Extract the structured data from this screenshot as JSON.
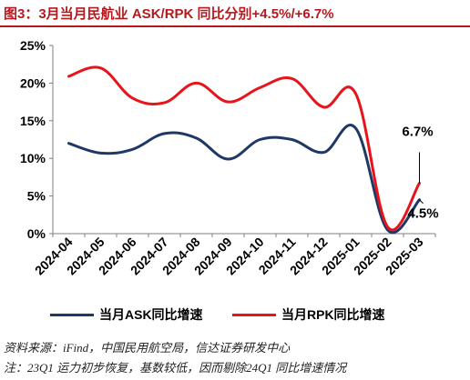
{
  "figure": {
    "title": "图3：3月当月民航业 ASK/RPK 同比分别+4.5%/+6.7%",
    "source": "资料来源：iFind，中国民用航空局，信达证券研发中心",
    "note": "注：23Q1 运力初步恢复，基数较低，因而剔除24Q1 同比增速情况"
  },
  "colors": {
    "ask": "#1f3864",
    "rpk": "#e8141c",
    "title": "#b5191f"
  },
  "chart_data": {
    "type": "line",
    "x": [
      "2024-04",
      "2024-05",
      "2024-06",
      "2024-07",
      "2024-08",
      "2024-09",
      "2024-10",
      "2024-11",
      "2024-12",
      "2025-01",
      "2025-02",
      "2025-03"
    ],
    "y_ticks": [
      "0%",
      "5%",
      "10%",
      "15%",
      "20%",
      "25%"
    ],
    "ylim": [
      0,
      25
    ],
    "grid": false,
    "legend_position": "bottom",
    "series": [
      {
        "name": "当月ASK同比增速",
        "color": "#1f3864",
        "values": [
          12.0,
          10.7,
          11.2,
          13.3,
          12.7,
          9.9,
          12.5,
          12.5,
          10.8,
          14.0,
          0.5,
          4.5
        ]
      },
      {
        "name": "当月RPK同比增速",
        "color": "#e8141c",
        "values": [
          20.9,
          22.0,
          18.0,
          17.4,
          20.0,
          17.5,
          19.4,
          20.6,
          16.8,
          18.6,
          0.9,
          6.7
        ]
      }
    ],
    "annotations": [
      {
        "series": 1,
        "index": 11,
        "text": "6.7%"
      },
      {
        "series": 0,
        "index": 11,
        "text": "4.5%"
      }
    ]
  }
}
